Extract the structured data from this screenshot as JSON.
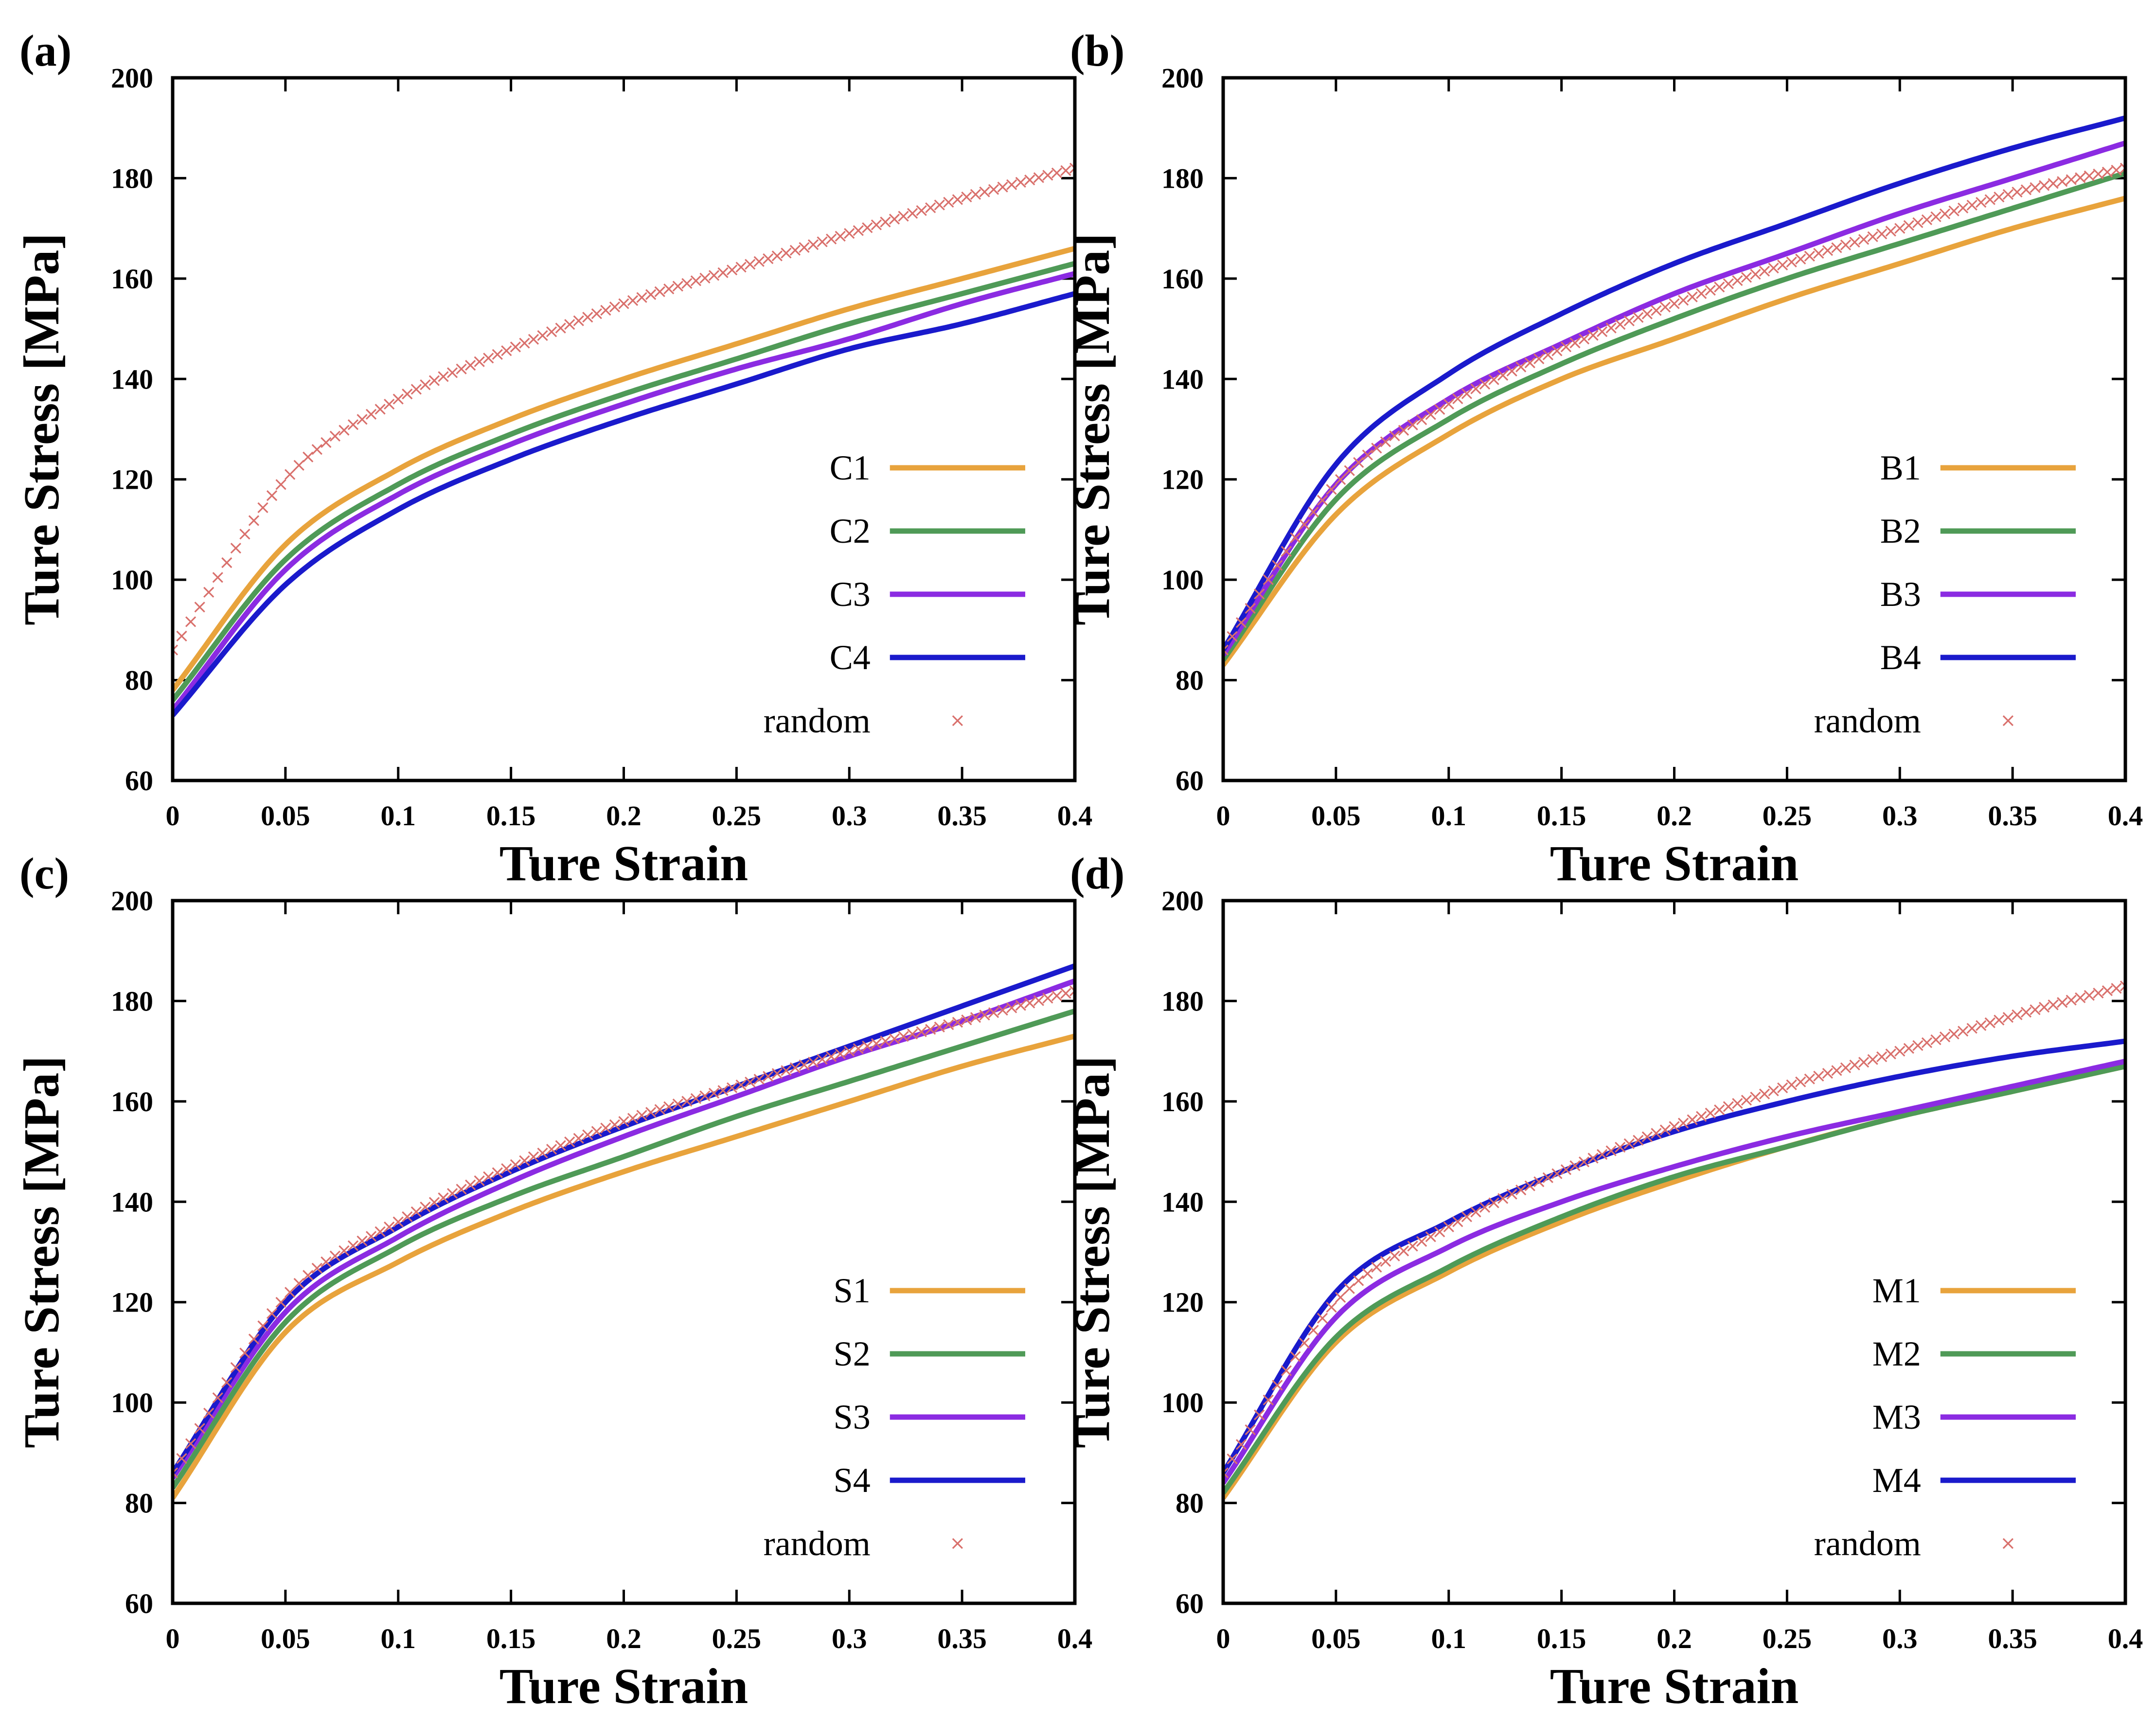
{
  "chart_data": [
    {
      "type": "line",
      "panel_label": "(a)",
      "xlabel": "Ture Strain",
      "ylabel": "Ture Stress [MPa]",
      "xlim": [
        0,
        0.4
      ],
      "ylim": [
        60,
        200
      ],
      "xticks": [
        "0",
        "0.05",
        "0.1",
        "0.15",
        "0.2",
        "0.25",
        "0.3",
        "0.35",
        "0.4"
      ],
      "yticks": [
        "60",
        "80",
        "100",
        "120",
        "140",
        "160",
        "180",
        "200"
      ],
      "legend_position": "lower-right",
      "series": [
        {
          "name": "C1",
          "color": "#e8a33c",
          "style": "line",
          "x": [
            0,
            0.05,
            0.1,
            0.15,
            0.2,
            0.25,
            0.3,
            0.35,
            0.4
          ],
          "y": [
            78,
            107,
            122,
            132,
            140,
            147,
            154,
            160,
            166
          ]
        },
        {
          "name": "C2",
          "color": "#4f9a57",
          "style": "line",
          "x": [
            0,
            0.05,
            0.1,
            0.15,
            0.2,
            0.25,
            0.3,
            0.35,
            0.4
          ],
          "y": [
            76,
            104,
            119,
            129,
            137,
            144,
            151,
            157,
            163
          ]
        },
        {
          "name": "C3",
          "color": "#8b2be2",
          "style": "line",
          "x": [
            0,
            0.05,
            0.1,
            0.15,
            0.2,
            0.25,
            0.3,
            0.35,
            0.4
          ],
          "y": [
            74,
            102,
            117,
            127,
            135,
            142,
            148,
            155,
            161
          ]
        },
        {
          "name": "C4",
          "color": "#1a1acc",
          "style": "line",
          "x": [
            0,
            0.05,
            0.1,
            0.15,
            0.2,
            0.25,
            0.3,
            0.35,
            0.4
          ],
          "y": [
            73,
            99,
            114,
            124,
            132,
            139,
            146,
            151,
            157
          ]
        },
        {
          "name": "random",
          "color": "#d9706c",
          "style": "marker",
          "x": [
            0,
            0.05,
            0.1,
            0.15,
            0.2,
            0.25,
            0.3,
            0.35,
            0.4
          ],
          "y": [
            86,
            120,
            136,
            146,
            155,
            162,
            169,
            176,
            182
          ]
        }
      ]
    },
    {
      "type": "line",
      "panel_label": "(b)",
      "xlabel": "Ture Strain",
      "ylabel": "Ture Stress [MPa]",
      "xlim": [
        0,
        0.4
      ],
      "ylim": [
        60,
        200
      ],
      "xticks": [
        "0",
        "0.05",
        "0.1",
        "0.15",
        "0.2",
        "0.25",
        "0.3",
        "0.35",
        "0.4"
      ],
      "yticks": [
        "60",
        "80",
        "100",
        "120",
        "140",
        "160",
        "180",
        "200"
      ],
      "legend_position": "lower-right",
      "series": [
        {
          "name": "B1",
          "color": "#e8a33c",
          "style": "line",
          "x": [
            0,
            0.05,
            0.1,
            0.15,
            0.2,
            0.25,
            0.3,
            0.35,
            0.4
          ],
          "y": [
            83,
            113,
            129,
            140,
            148,
            156,
            163,
            170,
            176
          ]
        },
        {
          "name": "B2",
          "color": "#4f9a57",
          "style": "line",
          "x": [
            0,
            0.05,
            0.1,
            0.15,
            0.2,
            0.25,
            0.3,
            0.35,
            0.4
          ],
          "y": [
            84,
            116,
            132,
            143,
            152,
            160,
            167,
            174,
            181
          ]
        },
        {
          "name": "B3",
          "color": "#8b2be2",
          "style": "line",
          "x": [
            0,
            0.05,
            0.1,
            0.15,
            0.2,
            0.25,
            0.3,
            0.35,
            0.4
          ],
          "y": [
            85,
            119,
            136,
            147,
            157,
            165,
            173,
            180,
            187
          ]
        },
        {
          "name": "B4",
          "color": "#1a1acc",
          "style": "line",
          "x": [
            0,
            0.05,
            0.1,
            0.15,
            0.2,
            0.25,
            0.3,
            0.35,
            0.4
          ],
          "y": [
            86,
            123,
            141,
            153,
            163,
            171,
            179,
            186,
            192
          ]
        },
        {
          "name": "random",
          "color": "#d9706c",
          "style": "marker",
          "x": [
            0,
            0.05,
            0.1,
            0.15,
            0.2,
            0.25,
            0.3,
            0.35,
            0.4
          ],
          "y": [
            86,
            119,
            135,
            146,
            155,
            163,
            170,
            177,
            182
          ]
        }
      ]
    },
    {
      "type": "line",
      "panel_label": "(c)",
      "xlabel": "Ture Strain",
      "ylabel": "Ture Stress [MPa]",
      "xlim": [
        0,
        0.4
      ],
      "ylim": [
        60,
        200
      ],
      "xticks": [
        "0",
        "0.05",
        "0.1",
        "0.15",
        "0.2",
        "0.25",
        "0.3",
        "0.35",
        "0.4"
      ],
      "yticks": [
        "60",
        "80",
        "100",
        "120",
        "140",
        "160",
        "180",
        "200"
      ],
      "legend_position": "lower-right",
      "series": [
        {
          "name": "S1",
          "color": "#e8a33c",
          "style": "line",
          "x": [
            0,
            0.05,
            0.1,
            0.15,
            0.2,
            0.25,
            0.3,
            0.35,
            0.4
          ],
          "y": [
            81,
            114,
            128,
            138,
            146,
            153,
            160,
            167,
            173
          ]
        },
        {
          "name": "S2",
          "color": "#4f9a57",
          "style": "line",
          "x": [
            0,
            0.05,
            0.1,
            0.15,
            0.2,
            0.25,
            0.3,
            0.35,
            0.4
          ],
          "y": [
            83,
            116,
            131,
            141,
            149,
            157,
            164,
            171,
            178
          ]
        },
        {
          "name": "S3",
          "color": "#8b2be2",
          "style": "line",
          "x": [
            0,
            0.05,
            0.1,
            0.15,
            0.2,
            0.25,
            0.3,
            0.35,
            0.4
          ],
          "y": [
            85,
            118,
            133,
            144,
            153,
            161,
            169,
            176,
            184
          ]
        },
        {
          "name": "S4",
          "color": "#1a1acc",
          "style": "line",
          "x": [
            0,
            0.05,
            0.1,
            0.15,
            0.2,
            0.25,
            0.3,
            0.35,
            0.4
          ],
          "y": [
            86,
            120,
            135,
            146,
            155,
            163,
            171,
            179,
            187
          ]
        },
        {
          "name": "random",
          "color": "#d9706c",
          "style": "marker",
          "x": [
            0,
            0.05,
            0.1,
            0.15,
            0.2,
            0.25,
            0.3,
            0.35,
            0.4
          ],
          "y": [
            86,
            121,
            136,
            147,
            156,
            163,
            170,
            176,
            182
          ]
        }
      ]
    },
    {
      "type": "line",
      "panel_label": "(d)",
      "xlabel": "Ture Strain",
      "ylabel": "Ture Stress [MPa]",
      "xlim": [
        0,
        0.4
      ],
      "ylim": [
        60,
        200
      ],
      "xticks": [
        "0",
        "0.05",
        "0.1",
        "0.15",
        "0.2",
        "0.25",
        "0.3",
        "0.35",
        "0.4"
      ],
      "yticks": [
        "60",
        "80",
        "100",
        "120",
        "140",
        "160",
        "180",
        "200"
      ],
      "legend_position": "lower-right",
      "series": [
        {
          "name": "M1",
          "color": "#e8a33c",
          "style": "line",
          "x": [
            0,
            0.05,
            0.1,
            0.15,
            0.2,
            0.25,
            0.3,
            0.35,
            0.4
          ],
          "y": [
            81,
            112,
            126,
            136,
            144,
            151,
            157,
            162,
            167
          ]
        },
        {
          "name": "M2",
          "color": "#4f9a57",
          "style": "line",
          "x": [
            0,
            0.05,
            0.1,
            0.15,
            0.2,
            0.25,
            0.3,
            0.35,
            0.4
          ],
          "y": [
            82,
            113,
            127,
            137,
            145,
            151,
            157,
            162,
            167
          ]
        },
        {
          "name": "M3",
          "color": "#8b2be2",
          "style": "line",
          "x": [
            0,
            0.05,
            0.1,
            0.15,
            0.2,
            0.25,
            0.3,
            0.35,
            0.4
          ],
          "y": [
            84,
            117,
            131,
            140,
            147,
            153,
            158,
            163,
            168
          ]
        },
        {
          "name": "M4",
          "color": "#1a1acc",
          "style": "line",
          "x": [
            0,
            0.05,
            0.1,
            0.15,
            0.2,
            0.25,
            0.3,
            0.35,
            0.4
          ],
          "y": [
            86,
            122,
            136,
            146,
            154,
            160,
            165,
            169,
            172
          ]
        },
        {
          "name": "random",
          "color": "#d9706c",
          "style": "marker",
          "x": [
            0,
            0.05,
            0.1,
            0.15,
            0.2,
            0.25,
            0.3,
            0.35,
            0.4
          ],
          "y": [
            86,
            120,
            135,
            146,
            155,
            163,
            170,
            177,
            183
          ]
        }
      ]
    }
  ]
}
